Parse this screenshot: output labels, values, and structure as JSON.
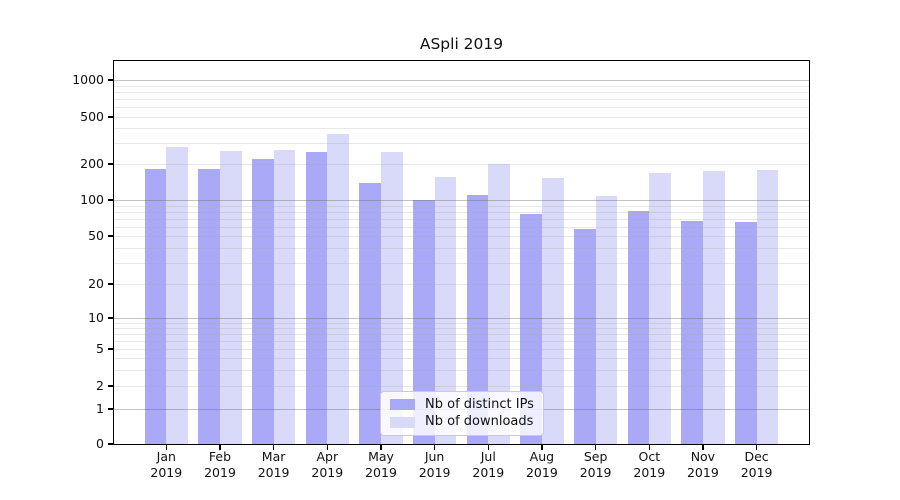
{
  "title": "ASpli 2019",
  "chart_data": {
    "type": "bar",
    "title": "ASpli 2019",
    "categories": [
      "Jan 2019",
      "Feb 2019",
      "Mar 2019",
      "Apr 2019",
      "May 2019",
      "Jun 2019",
      "Jul 2019",
      "Aug 2019",
      "Sep 2019",
      "Oct 2019",
      "Nov 2019",
      "Dec 2019"
    ],
    "series": [
      {
        "name": "Nb of distinct IPs",
        "color": "#a9a9f7",
        "values": [
          182,
          181,
          222,
          253,
          139,
          100,
          110,
          76,
          57,
          81,
          67,
          66
        ]
      },
      {
        "name": "Nb of downloads",
        "color": "#d9d9f9",
        "values": [
          277,
          258,
          265,
          360,
          252,
          156,
          199,
          153,
          108,
          168,
          175,
          178
        ]
      }
    ],
    "xlabel": "",
    "ylabel": "",
    "y_axis": {
      "scale": "symlog",
      "ticks": [
        0,
        1,
        2,
        5,
        10,
        20,
        50,
        100,
        200,
        500,
        1000
      ],
      "range": [
        0,
        1450
      ],
      "grid": "horizontal major and log-minor gridlines"
    },
    "legend": {
      "position": "lower center",
      "items": [
        "Nb of distinct IPs",
        "Nb of downloads"
      ]
    }
  },
  "colors": {
    "bar_distinct_ips": "#a9a9f7",
    "bar_downloads": "#d9d9f9",
    "grid_major": "#bdbdbd",
    "grid_minor": "#e9e9e9",
    "frame": "#000000",
    "text": "#111111",
    "legend_border": "#cccccc",
    "background": "#ffffff"
  }
}
